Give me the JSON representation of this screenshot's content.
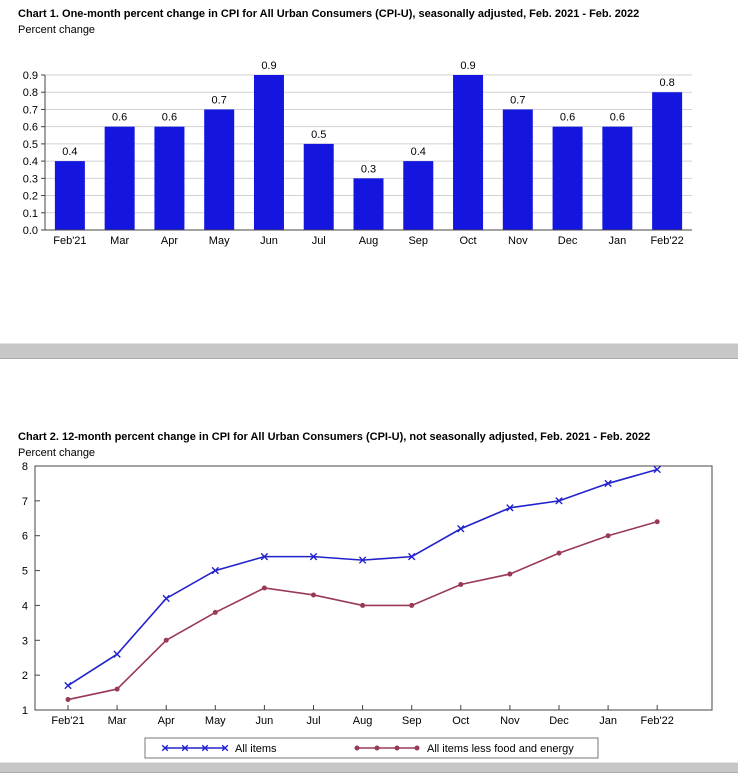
{
  "colors": {
    "bar_blue": "#1515e0",
    "line_blue": "#2222cc",
    "line_maroon": "#993a55",
    "grid": "#d2d2d2",
    "axis": "#444444",
    "scrollbar_track": "#c7c7c7"
  },
  "chart_data": [
    {
      "type": "bar",
      "title": "Chart 1. One-month percent change in CPI for All Urban Consumers (CPI-U), seasonally adjusted, Feb. 2021 - Feb. 2022",
      "ylabel": "Percent change",
      "xlabel": "",
      "categories": [
        "Feb'21",
        "Mar",
        "Apr",
        "May",
        "Jun",
        "Jul",
        "Aug",
        "Sep",
        "Oct",
        "Nov",
        "Dec",
        "Jan",
        "Feb'22"
      ],
      "values": [
        0.4,
        0.6,
        0.6,
        0.7,
        0.9,
        0.5,
        0.3,
        0.4,
        0.9,
        0.7,
        0.6,
        0.6,
        0.8
      ],
      "ylim": [
        0.0,
        0.9
      ],
      "ytick_step": 0.1,
      "bar_color": "#1515e0",
      "grid": true,
      "value_labels": true,
      "legend_position": "none"
    },
    {
      "type": "line",
      "title": "Chart 2. 12-month percent change in CPI for All Urban Consumers (CPI-U), not seasonally adjusted, Feb. 2021 - Feb. 2022",
      "ylabel": "Percent change",
      "xlabel": "",
      "categories": [
        "Feb'21",
        "Mar",
        "Apr",
        "May",
        "Jun",
        "Jul",
        "Aug",
        "Sep",
        "Oct",
        "Nov",
        "Dec",
        "Jan",
        "Feb'22"
      ],
      "series": [
        {
          "name": "All items",
          "values": [
            1.7,
            2.6,
            4.2,
            5.0,
            5.4,
            5.4,
            5.3,
            5.4,
            6.2,
            6.8,
            7.0,
            7.5,
            7.9
          ],
          "color": "#2222cc",
          "marker": "x"
        },
        {
          "name": "All items less food and energy",
          "values": [
            1.3,
            1.6,
            3.0,
            3.8,
            4.5,
            4.3,
            4.0,
            4.0,
            4.6,
            4.9,
            5.5,
            6.0,
            6.4
          ],
          "color": "#993a55",
          "marker": "dot"
        }
      ],
      "ylim": [
        1,
        8
      ],
      "ytick_step": 1,
      "grid": false,
      "legend_position": "bottom-center",
      "legend_border": true
    }
  ]
}
